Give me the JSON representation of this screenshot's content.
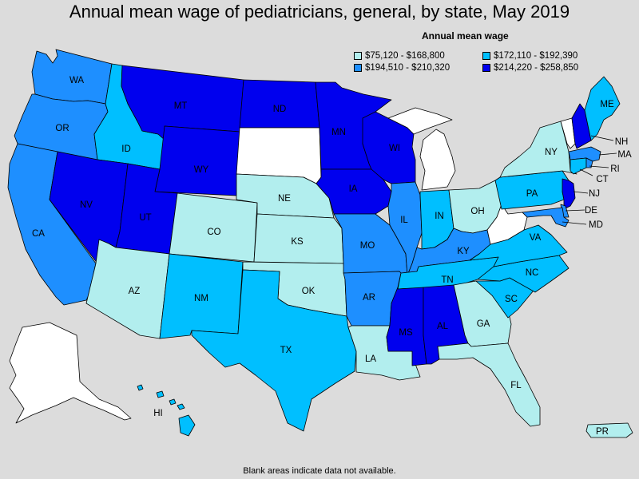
{
  "title": "Annual mean wage of pediatricians, general, by state, May 2019",
  "legend": {
    "title": "Annual mean wage",
    "items": [
      {
        "label": "$75,120 - $168,800",
        "color": "#b2eeee"
      },
      {
        "label": "$172,110 - $192,390",
        "color": "#00bfff"
      },
      {
        "label": "$194,510 - $210,320",
        "color": "#1e8fff"
      },
      {
        "label": "$214,220 - $258,850",
        "color": "#0000ee"
      }
    ]
  },
  "footnote": "Blank areas indicate data not available.",
  "colors": {
    "tier1": "#b2eeee",
    "tier2": "#00bfff",
    "tier3": "#1e8fff",
    "tier4": "#0000ee",
    "no_data": "#ffffff",
    "background": "#dcdcdc"
  },
  "states": [
    {
      "abbr": "WA",
      "tier": 3
    },
    {
      "abbr": "OR",
      "tier": 3
    },
    {
      "abbr": "CA",
      "tier": 3
    },
    {
      "abbr": "ID",
      "tier": 2
    },
    {
      "abbr": "NV",
      "tier": 4
    },
    {
      "abbr": "MT",
      "tier": 4
    },
    {
      "abbr": "WY",
      "tier": 4
    },
    {
      "abbr": "UT",
      "tier": 4
    },
    {
      "abbr": "AZ",
      "tier": 1
    },
    {
      "abbr": "CO",
      "tier": 1
    },
    {
      "abbr": "NM",
      "tier": 2
    },
    {
      "abbr": "ND",
      "tier": 4
    },
    {
      "abbr": "SD",
      "tier": 0
    },
    {
      "abbr": "NE",
      "tier": 1
    },
    {
      "abbr": "KS",
      "tier": 1
    },
    {
      "abbr": "OK",
      "tier": 1
    },
    {
      "abbr": "TX",
      "tier": 2
    },
    {
      "abbr": "MN",
      "tier": 4
    },
    {
      "abbr": "IA",
      "tier": 4
    },
    {
      "abbr": "MO",
      "tier": 3
    },
    {
      "abbr": "AR",
      "tier": 3
    },
    {
      "abbr": "LA",
      "tier": 1
    },
    {
      "abbr": "WI",
      "tier": 4
    },
    {
      "abbr": "IL",
      "tier": 3
    },
    {
      "abbr": "MI",
      "tier": 0
    },
    {
      "abbr": "IN",
      "tier": 2
    },
    {
      "abbr": "OH",
      "tier": 1
    },
    {
      "abbr": "KY",
      "tier": 3
    },
    {
      "abbr": "TN",
      "tier": 2
    },
    {
      "abbr": "MS",
      "tier": 4
    },
    {
      "abbr": "AL",
      "tier": 4
    },
    {
      "abbr": "GA",
      "tier": 1
    },
    {
      "abbr": "FL",
      "tier": 1
    },
    {
      "abbr": "SC",
      "tier": 2
    },
    {
      "abbr": "NC",
      "tier": 2
    },
    {
      "abbr": "VA",
      "tier": 2
    },
    {
      "abbr": "WV",
      "tier": 0
    },
    {
      "abbr": "PA",
      "tier": 2
    },
    {
      "abbr": "NY",
      "tier": 1
    },
    {
      "abbr": "VT",
      "tier": 0
    },
    {
      "abbr": "NH",
      "tier": 4
    },
    {
      "abbr": "ME",
      "tier": 2
    },
    {
      "abbr": "MA",
      "tier": 3
    },
    {
      "abbr": "RI",
      "tier": 3
    },
    {
      "abbr": "CT",
      "tier": 2
    },
    {
      "abbr": "NJ",
      "tier": 4
    },
    {
      "abbr": "DE",
      "tier": 3
    },
    {
      "abbr": "MD",
      "tier": 3
    },
    {
      "abbr": "AK",
      "tier": 0
    },
    {
      "abbr": "HI",
      "tier": 2
    },
    {
      "abbr": "PR",
      "tier": 1
    }
  ]
}
